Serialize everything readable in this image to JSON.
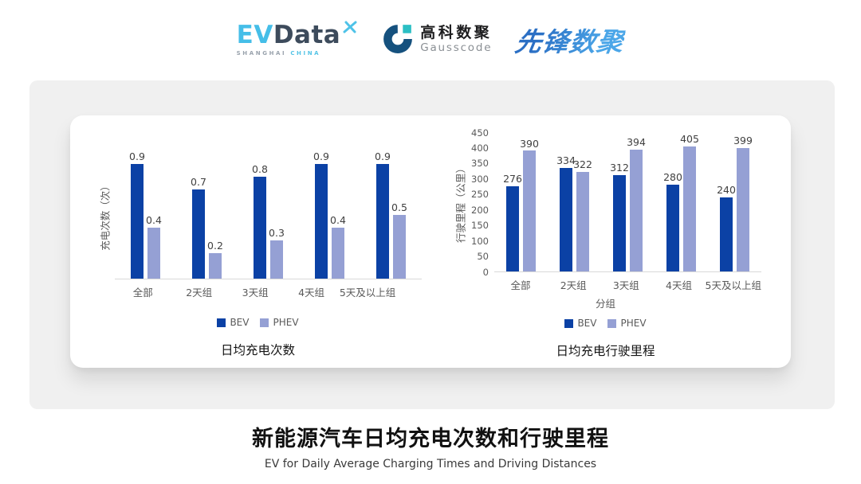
{
  "header": {
    "evdata": {
      "ev": "EV",
      "data": "Data",
      "sub_left": "SHANGHAI",
      "sub_right": "CHINA"
    },
    "gausscode": {
      "cn": "高科数聚",
      "en": "Gausscode"
    },
    "xianfeng": {
      "text": "先锋数聚"
    }
  },
  "colors": {
    "bev": "#0B41A5",
    "phev": "#95A0D4"
  },
  "legend": {
    "bev": "BEV",
    "phev": "PHEV"
  },
  "chart_data": [
    {
      "type": "bar",
      "title": "日均充电次数",
      "ylabel": "充电次数（次）",
      "xlabel": "",
      "categories": [
        "全部",
        "2天组",
        "3天组",
        "4天组",
        "5天及以上组"
      ],
      "series": [
        {
          "name": "BEV",
          "color": "#0B41A5",
          "values": [
            0.9,
            0.7,
            0.8,
            0.9,
            0.9
          ]
        },
        {
          "name": "PHEV",
          "color": "#95A0D4",
          "values": [
            0.4,
            0.2,
            0.3,
            0.4,
            0.5
          ]
        }
      ],
      "ylim": [
        0,
        1.0
      ],
      "yticks_visible": false,
      "grid": false,
      "legend_position": "bottom"
    },
    {
      "type": "bar",
      "title": "日均充电行驶里程",
      "ylabel": "行驶里程（公里）",
      "xlabel": "分组",
      "categories": [
        "全部",
        "2天组",
        "3天组",
        "4天组",
        "5天及以上组"
      ],
      "series": [
        {
          "name": "BEV",
          "color": "#0B41A5",
          "values": [
            276,
            334,
            312,
            280,
            240
          ]
        },
        {
          "name": "PHEV",
          "color": "#95A0D4",
          "values": [
            390,
            322,
            394,
            405,
            399
          ]
        }
      ],
      "ylim": [
        0,
        450
      ],
      "ytick_step": 50,
      "yticks_visible": true,
      "grid": false,
      "legend_position": "bottom"
    }
  ],
  "caption": {
    "title": "新能源汽车日均充电次数和行驶里程",
    "subtitle": "EV for Daily Average Charging Times and Driving Distances"
  }
}
